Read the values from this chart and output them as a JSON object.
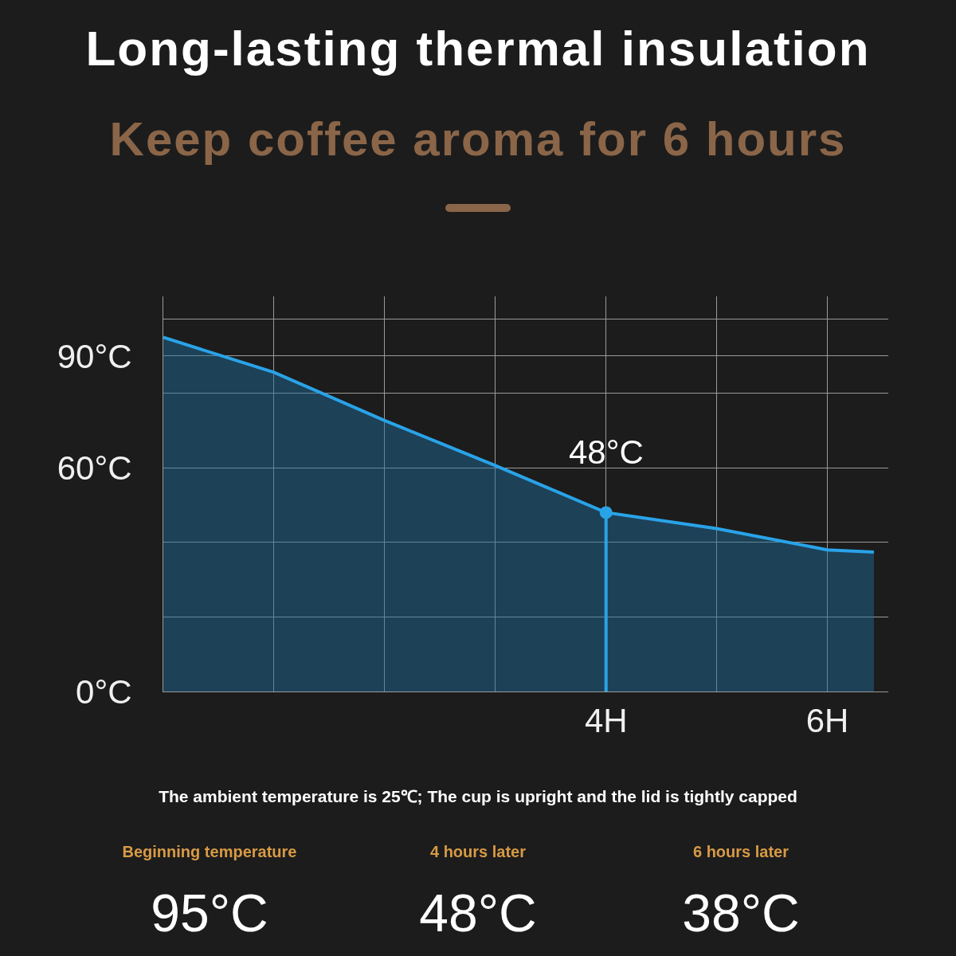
{
  "chart_data": {
    "type": "area",
    "title": "Long-lasting thermal insulation",
    "subtitle": "Keep coffee aroma for 6 hours",
    "x": [
      0,
      1,
      2,
      3,
      4,
      5,
      6,
      6.42
    ],
    "series": [
      {
        "color": "#29a3e8",
        "values": [
          95,
          85.6,
          72.7,
          60.6,
          48,
          43.7,
          38,
          37.4
        ]
      }
    ],
    "xlim": [
      0,
      6.55
    ],
    "ylim": [
      0,
      106
    ],
    "xticks": [
      {
        "value": 0,
        "label": null
      },
      {
        "value": 1,
        "label": null
      },
      {
        "value": 2,
        "label": null
      },
      {
        "value": 3,
        "label": null
      },
      {
        "value": 4,
        "label": "4H"
      },
      {
        "value": 5,
        "label": null
      },
      {
        "value": 6,
        "label": "6H"
      }
    ],
    "yticks": [
      {
        "value": 0,
        "label": "0°C"
      },
      {
        "value": 20,
        "label": null
      },
      {
        "value": 40,
        "label": null
      },
      {
        "value": 60,
        "label": "60°C"
      },
      {
        "value": 80,
        "label": null
      },
      {
        "value": 90,
        "label": "90°C"
      },
      {
        "value": 100,
        "label": null
      }
    ],
    "grid": true,
    "marker": "none",
    "ref_lines": [
      {
        "axis": "x",
        "value": 4,
        "color": "#29a3e8"
      }
    ],
    "annotations": [
      {
        "text": "48°C",
        "x": 4,
        "y": 48
      },
      "The ambient temperature is 25℃; The cup is upright and the lid is tightly capped",
      "Beginning temperature",
      "95°C",
      "4 hours later",
      "48°C",
      "6 hours later",
      "38°C"
    ]
  }
}
